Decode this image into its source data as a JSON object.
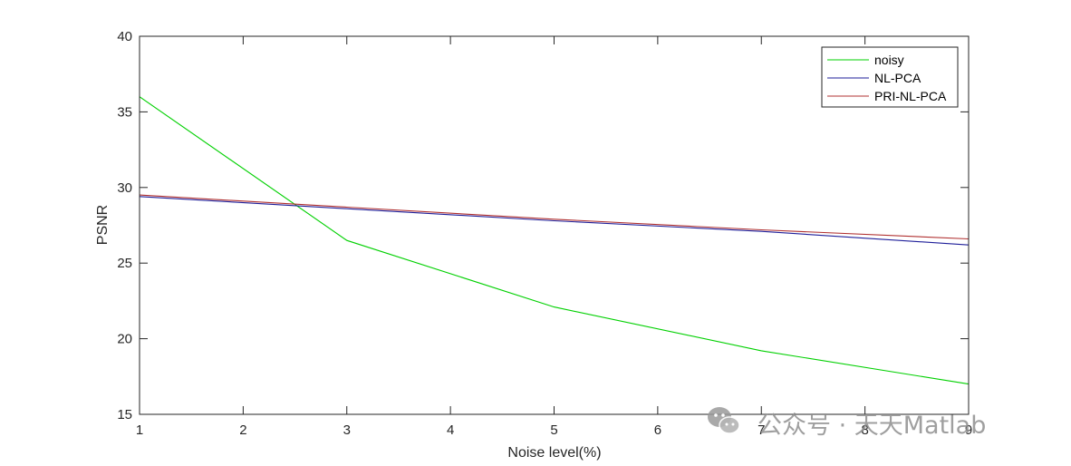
{
  "chart_data": {
    "type": "line",
    "title": "",
    "xlabel": "Noise level(%)",
    "ylabel": "PSNR",
    "xlim": [
      1,
      9
    ],
    "ylim": [
      15,
      40
    ],
    "x_ticks": [
      1,
      2,
      3,
      4,
      5,
      6,
      7,
      8,
      9
    ],
    "y_ticks": [
      15,
      20,
      25,
      30,
      35,
      40
    ],
    "grid": false,
    "legend_position": "top-right",
    "series": [
      {
        "name": "noisy",
        "color": "#00d000",
        "x": [
          1,
          3,
          5,
          7,
          9
        ],
        "y": [
          36.0,
          26.5,
          22.1,
          19.2,
          17.0
        ]
      },
      {
        "name": "NL-PCA",
        "color": "#1f1f9a",
        "x": [
          1,
          3,
          5,
          7,
          9
        ],
        "y": [
          29.4,
          28.6,
          27.8,
          27.1,
          26.2
        ]
      },
      {
        "name": "PRI-NL-PCA",
        "color": "#b03030",
        "x": [
          1,
          3,
          5,
          7,
          9
        ],
        "y": [
          29.5,
          28.7,
          27.9,
          27.2,
          26.6
        ]
      }
    ]
  },
  "watermark": {
    "text": "公众号 · 天天Matlab",
    "icon": "wechat-icon"
  }
}
